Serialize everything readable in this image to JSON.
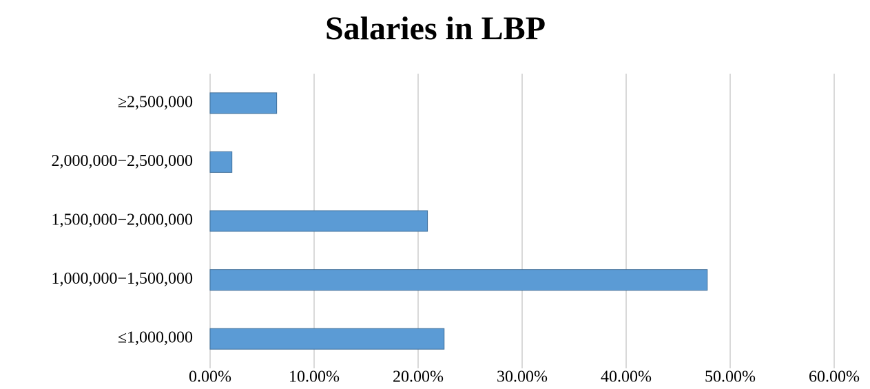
{
  "chart_data": {
    "type": "hbar",
    "title": "Salaries in LBP",
    "categories": [
      "≥2,500,000",
      "2,000,000−2,500,000",
      "1,500,000−2,000,000",
      "1,000,000−1,500,000",
      "≤1,000,000"
    ],
    "values": [
      6.4,
      2.1,
      20.9,
      47.8,
      22.5
    ],
    "color": "#5b9bd5",
    "xlim": [
      0,
      60
    ],
    "xticks": [
      {
        "value": 0,
        "label": "0.00%"
      },
      {
        "value": 10,
        "label": "10.00%"
      },
      {
        "value": 20,
        "label": "20.00%"
      },
      {
        "value": 30,
        "label": "30.00%"
      },
      {
        "value": 40,
        "label": "40.00%"
      },
      {
        "value": 50,
        "label": "50.00%"
      },
      {
        "value": 60,
        "label": "60.00%"
      }
    ],
    "grid": true
  }
}
